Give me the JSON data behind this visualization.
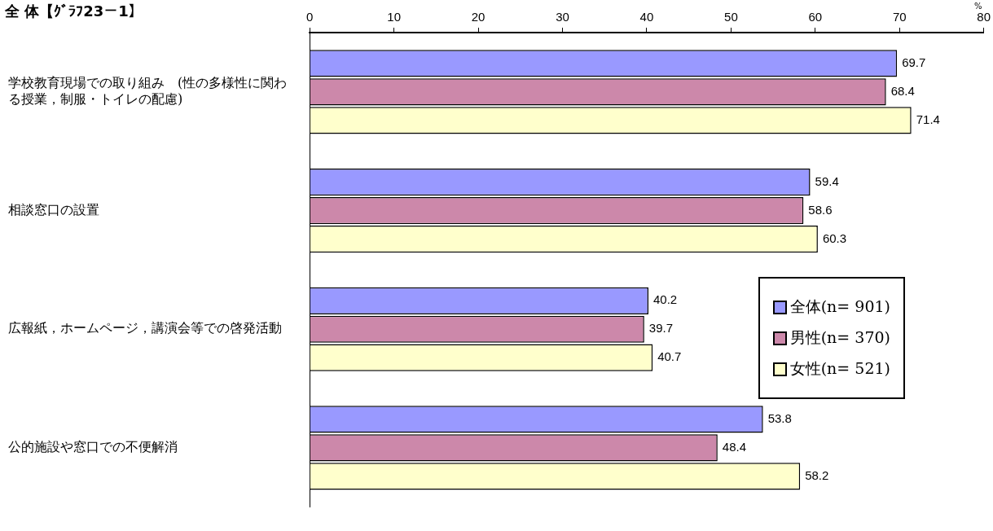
{
  "chart_data": {
    "type": "bar",
    "orientation": "horizontal",
    "title": "全 体【ｸﾞﾗﾌ23－1】",
    "xlabel": "%",
    "categories": [
      "学校教育現場での取り組み　(性の多様性に関わる授業，制服・トイレの配慮)",
      "相談窓口の設置",
      "広報紙，ホームページ，講演会等での啓発活動",
      "公的施設や窓口での不便解消"
    ],
    "series": [
      {
        "name": "全体(n= 901)",
        "color": "#9999ff",
        "values": [
          69.7,
          59.4,
          40.2,
          53.8
        ]
      },
      {
        "name": "男性(n= 370)",
        "color": "#cc88aa",
        "values": [
          68.4,
          58.6,
          39.7,
          48.4
        ]
      },
      {
        "name": "女性(n= 521)",
        "color": "#ffffcc",
        "values": [
          71.4,
          60.3,
          40.7,
          58.2
        ]
      }
    ],
    "xlim": [
      0,
      80
    ],
    "xticks": [
      0,
      10,
      20,
      30,
      40,
      50,
      60,
      70,
      80
    ],
    "grid": false,
    "legend": "bottom right",
    "data_labels": true
  }
}
